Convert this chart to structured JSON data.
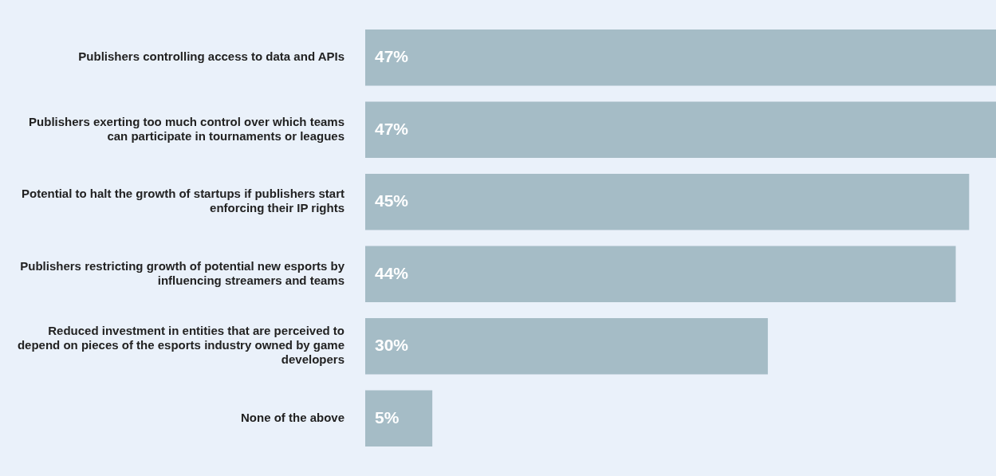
{
  "chart_data": {
    "type": "bar",
    "orientation": "horizontal",
    "categories": [
      "Publishers controlling access to data and APIs",
      "Publishers exerting too much control over which teams can participate in tournaments or leagues",
      "Potential to halt the growth of startups if publishers start enforcing their IP rights",
      "Publishers restricting growth of potential new esports by influencing streamers and teams",
      "Reduced investment in entities that are perceived to depend on pieces of the esports industry owned by game developers",
      "None of the above"
    ],
    "values": [
      47,
      47,
      45,
      44,
      30,
      5
    ],
    "value_labels": [
      "47%",
      "47%",
      "45%",
      "44%",
      "30%",
      "5%"
    ],
    "color": "#a5bcc6",
    "grid": false,
    "legend": false,
    "tick_labels": "y"
  }
}
